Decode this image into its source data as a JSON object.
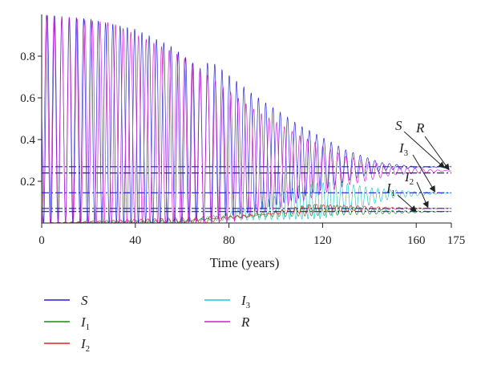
{
  "chart_data": {
    "type": "line",
    "xlabel": "Time (years)",
    "ylabel": "",
    "xlim": [
      0,
      175
    ],
    "ylim": [
      0,
      1
    ],
    "x_ticks": [
      "0",
      "40",
      "80",
      "120",
      "160",
      "175"
    ],
    "y_ticks": [
      "0.2",
      "0.4",
      "0.6",
      "0.8"
    ],
    "grid": false,
    "legend_position": "bottom",
    "series": [
      {
        "name": "S",
        "sub": "",
        "color": "#1f1fd6",
        "behavior": "oscillating, damped",
        "upper_envelope": [
          [
            0,
            1.0
          ],
          [
            20,
            0.98
          ],
          [
            40,
            0.93
          ],
          [
            55,
            0.85
          ],
          [
            68,
            0.74
          ],
          [
            72,
            0.78
          ],
          [
            90,
            0.62
          ],
          [
            110,
            0.47
          ],
          [
            130,
            0.35
          ],
          [
            145,
            0.29
          ],
          [
            160,
            0.27
          ],
          [
            175,
            0.27
          ]
        ],
        "lower_envelope": [
          [
            0,
            0.0
          ],
          [
            60,
            0.0
          ],
          [
            90,
            0.05
          ],
          [
            110,
            0.12
          ],
          [
            130,
            0.2
          ],
          [
            145,
            0.25
          ],
          [
            160,
            0.265
          ],
          [
            175,
            0.27
          ]
        ],
        "equilibrium": 0.27
      },
      {
        "name": "I",
        "sub": "1",
        "color": "#1a8a1a",
        "behavior": "oscillating, grows then damps",
        "upper_envelope": [
          [
            0,
            0.0
          ],
          [
            60,
            0.0
          ],
          [
            80,
            0.03
          ],
          [
            100,
            0.06
          ],
          [
            115,
            0.09
          ],
          [
            130,
            0.08
          ],
          [
            150,
            0.06
          ],
          [
            175,
            0.055
          ]
        ],
        "lower_envelope": [
          [
            0,
            0.0
          ],
          [
            150,
            0.045
          ],
          [
            175,
            0.055
          ]
        ],
        "equilibrium": 0.055
      },
      {
        "name": "I",
        "sub": "2",
        "color": "#e02020",
        "behavior": "oscillating, grows then damps",
        "upper_envelope": [
          [
            0,
            0.0
          ],
          [
            70,
            0.0
          ],
          [
            95,
            0.04
          ],
          [
            115,
            0.09
          ],
          [
            130,
            0.085
          ],
          [
            150,
            0.075
          ],
          [
            175,
            0.07
          ]
        ],
        "lower_envelope": [
          [
            0,
            0.0
          ],
          [
            150,
            0.065
          ],
          [
            175,
            0.07
          ]
        ],
        "equilibrium": 0.07
      },
      {
        "name": "I",
        "sub": "3",
        "color": "#22c8c8",
        "behavior": "oscillating, grows then damps",
        "upper_envelope": [
          [
            0,
            0.0
          ],
          [
            60,
            0.0
          ],
          [
            90,
            0.08
          ],
          [
            110,
            0.18
          ],
          [
            125,
            0.2
          ],
          [
            140,
            0.17
          ],
          [
            160,
            0.15
          ],
          [
            175,
            0.145
          ]
        ],
        "lower_envelope": [
          [
            0,
            0.0
          ],
          [
            120,
            0.02
          ],
          [
            150,
            0.12
          ],
          [
            175,
            0.145
          ]
        ],
        "equilibrium": 0.145
      },
      {
        "name": "R",
        "sub": "",
        "color": "#d21bd2",
        "behavior": "oscillating, damped",
        "upper_envelope": [
          [
            0,
            1.0
          ],
          [
            30,
            0.96
          ],
          [
            60,
            0.8
          ],
          [
            90,
            0.55
          ],
          [
            110,
            0.42
          ],
          [
            130,
            0.32
          ],
          [
            150,
            0.27
          ],
          [
            175,
            0.25
          ]
        ],
        "lower_envelope": [
          [
            0,
            0.0
          ],
          [
            80,
            0.0
          ],
          [
            110,
            0.1
          ],
          [
            130,
            0.18
          ],
          [
            150,
            0.23
          ],
          [
            175,
            0.25
          ]
        ],
        "equilibrium": 0.25
      }
    ],
    "reference_lines": [
      {
        "value": 0.27,
        "color": "#1f1fd6",
        "style": "dash-dot"
      },
      {
        "value": 0.24,
        "color": "#1f1fd6",
        "style": "dash-dot"
      },
      {
        "value": 0.145,
        "color": "#1f1fd6",
        "style": "dash-dot"
      },
      {
        "value": 0.07,
        "color": "#1f1fd6",
        "style": "dash-dot"
      },
      {
        "value": 0.055,
        "color": "#1f1fd6",
        "style": "dash-dot"
      }
    ],
    "annotations": [
      {
        "name": "S",
        "sub": ""
      },
      {
        "name": "R",
        "sub": ""
      },
      {
        "name": "I",
        "sub": "3"
      },
      {
        "name": "I",
        "sub": "2"
      },
      {
        "name": "I",
        "sub": "1"
      }
    ]
  }
}
